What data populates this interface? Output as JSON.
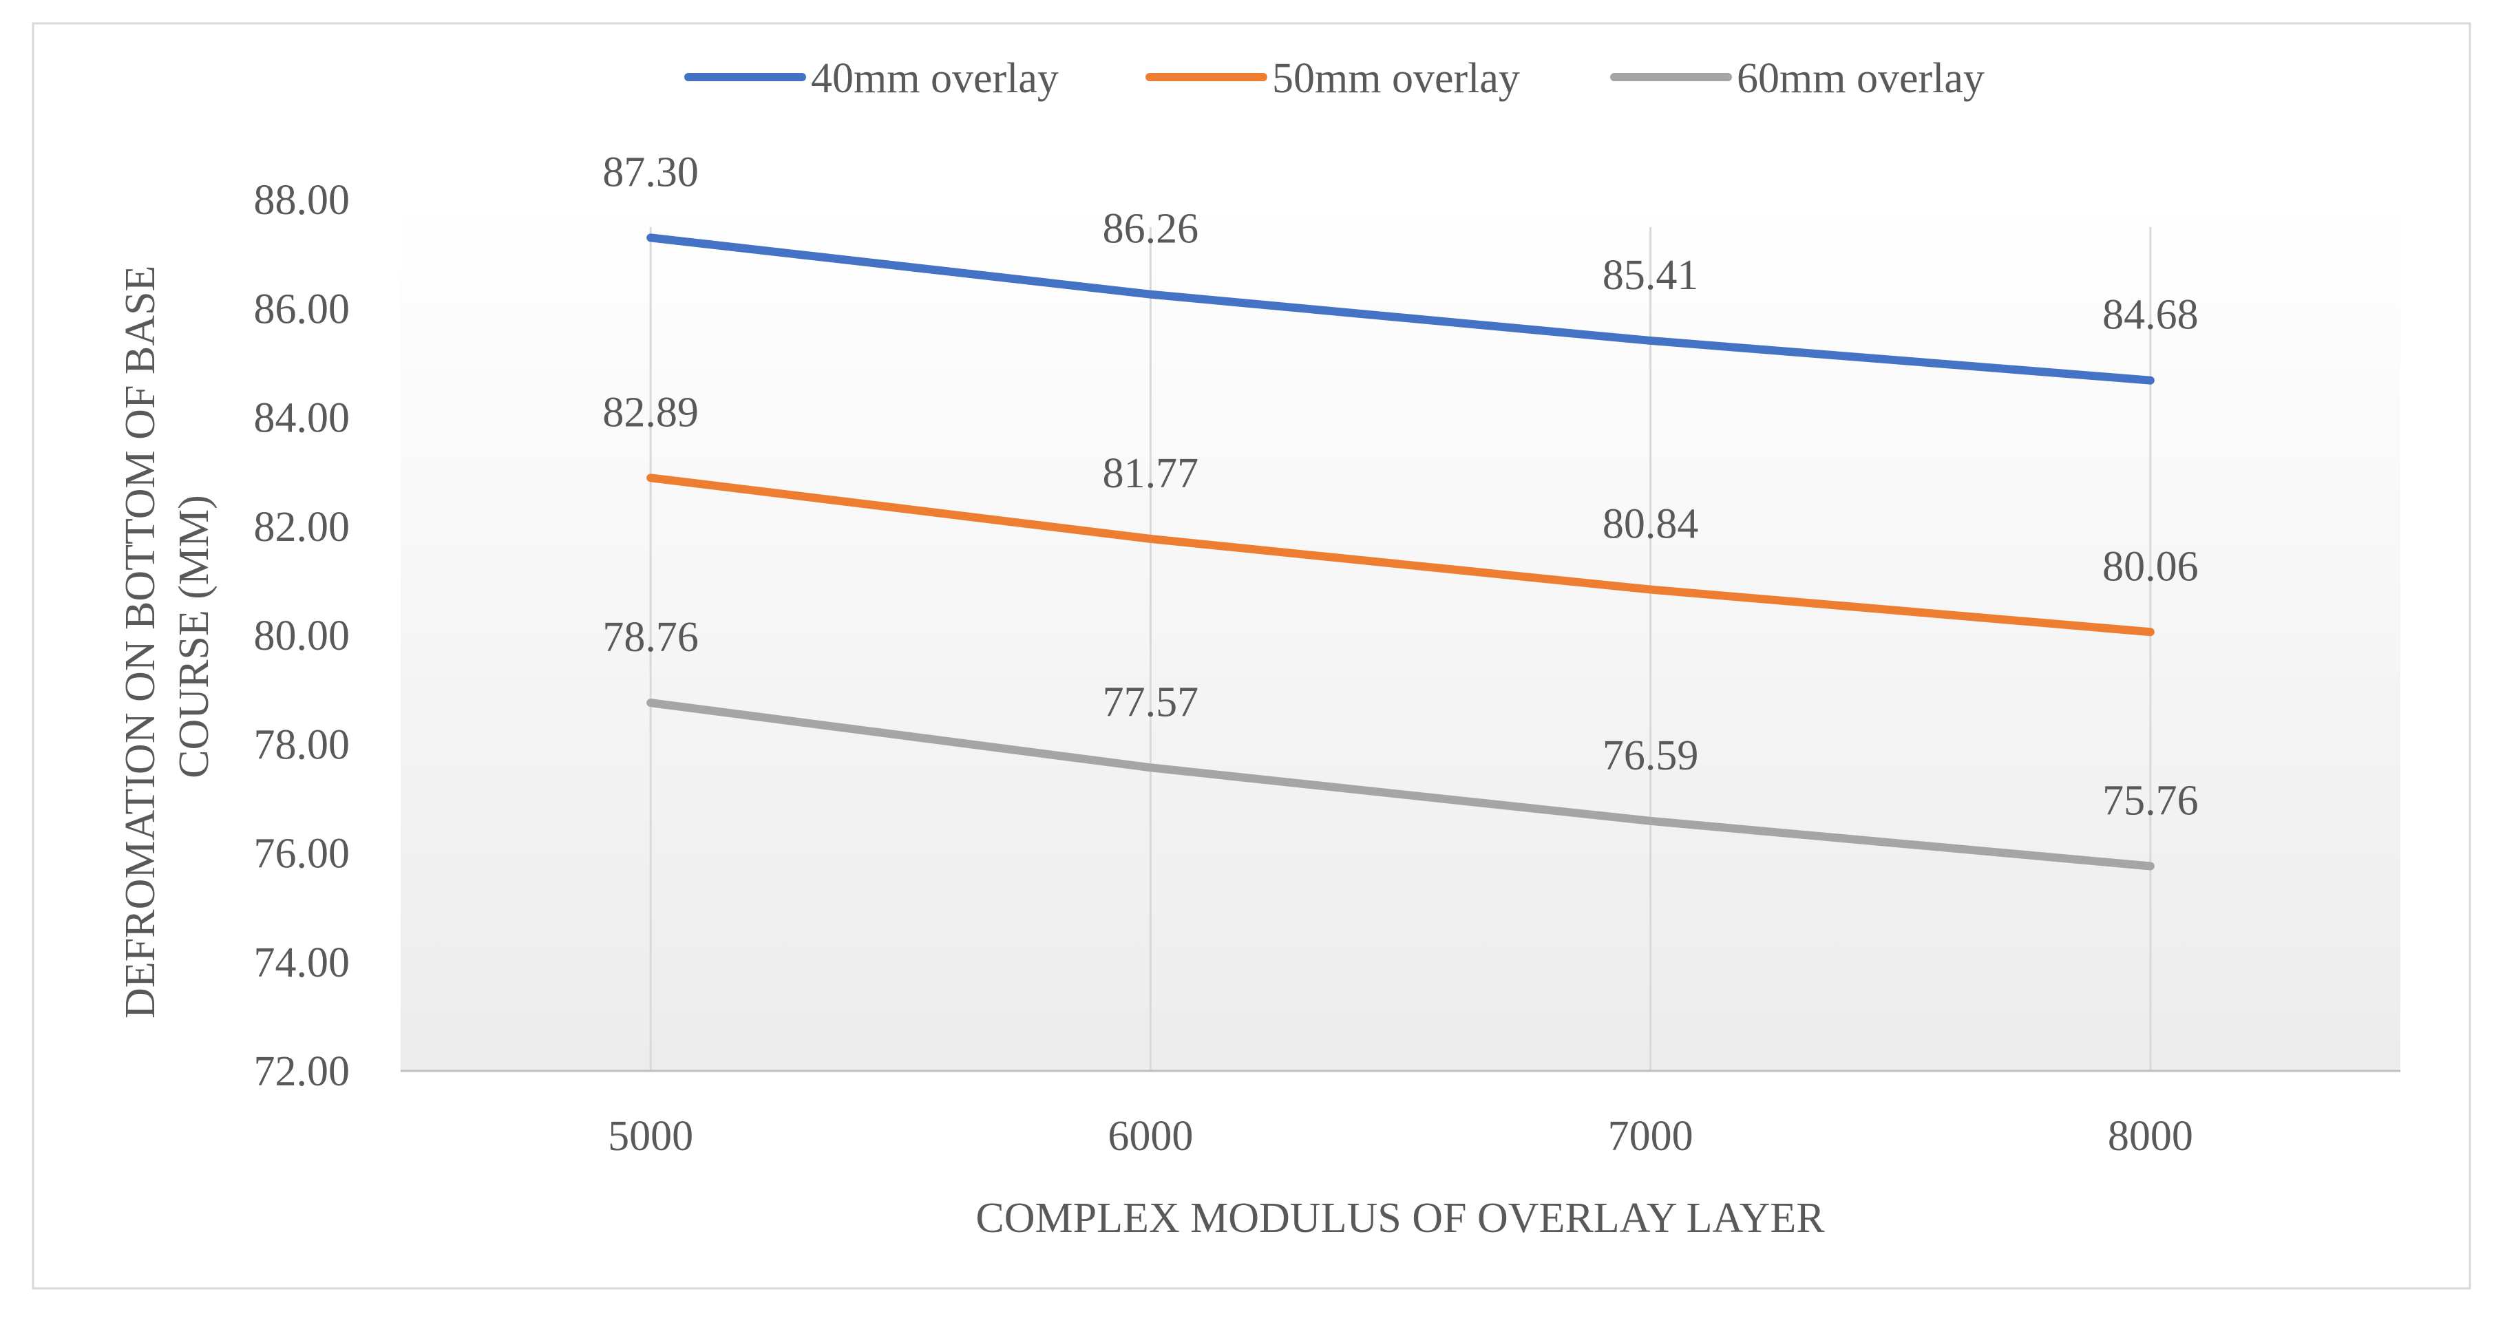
{
  "chart_data": {
    "type": "line",
    "title": "",
    "xlabel": "COMPLEX MODULUS OF OVERLAY LAYER",
    "ylabel_lines": [
      "DEFROMATION ON BOTTOM OF BASE",
      "COURSE (MM)"
    ],
    "categories": [
      "5000",
      "6000",
      "7000",
      "8000"
    ],
    "ylim": [
      72,
      88
    ],
    "yticks": [
      "72.00",
      "74.00",
      "76.00",
      "78.00",
      "80.00",
      "82.00",
      "84.00",
      "86.00",
      "88.00"
    ],
    "grid": "vertical",
    "legend_position": "top",
    "series": [
      {
        "name": "40mm overlay",
        "color": "#4472c4",
        "values": [
          87.3,
          86.26,
          85.41,
          84.68
        ],
        "labels": [
          "87.30",
          "86.26",
          "85.41",
          "84.68"
        ]
      },
      {
        "name": "50mm overlay",
        "color": "#ed7d31",
        "values": [
          82.89,
          81.77,
          80.84,
          80.06
        ],
        "labels": [
          "82.89",
          "81.77",
          "80.84",
          "80.06"
        ]
      },
      {
        "name": "60mm overlay",
        "color": "#a5a5a5",
        "values": [
          78.76,
          77.57,
          76.59,
          75.76
        ],
        "labels": [
          "78.76",
          "77.57",
          "76.59",
          "75.76"
        ]
      }
    ]
  }
}
